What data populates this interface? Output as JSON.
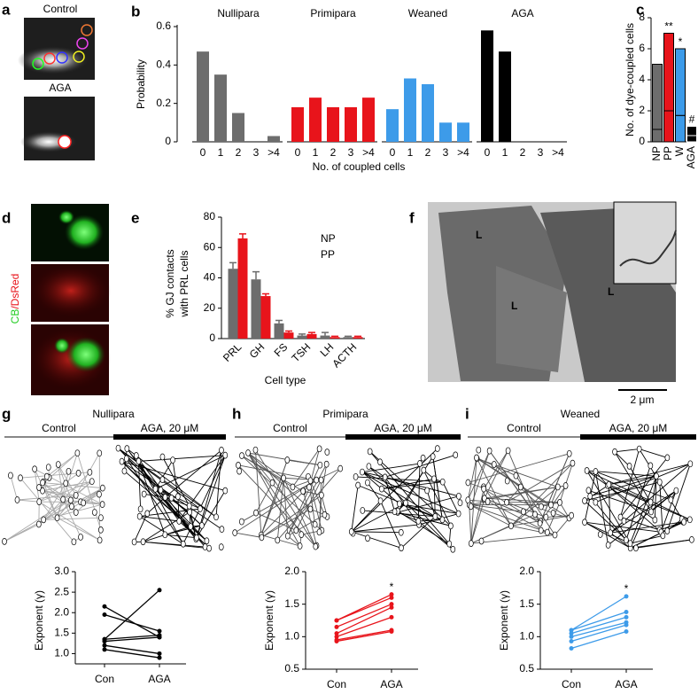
{
  "figure": {
    "a": {
      "panel": "a",
      "labels": [
        "Control",
        "AGA"
      ]
    },
    "d": {
      "panel": "d",
      "stain": [
        "CB",
        "/DsRed"
      ]
    },
    "f": {
      "panel": "f",
      "cells": [
        "L",
        "L",
        "L"
      ],
      "scale": "2 μm"
    },
    "g": {
      "panel": "g",
      "title": "Nullipara",
      "conditions": [
        "Control",
        "AGA, 20 μM"
      ]
    },
    "h": {
      "panel": "h",
      "title": "Primipara",
      "conditions": [
        "Control",
        "AGA, 20 μM"
      ]
    },
    "i": {
      "panel": "i",
      "title": "Weaned",
      "conditions": [
        "Control",
        "AGA, 20 μM"
      ]
    }
  },
  "chart_data": [
    {
      "type": "bar",
      "panel": "b",
      "ylabel": "Probability",
      "xlabel": "No. of coupled cells",
      "categories": [
        "0",
        "1",
        "2",
        "3",
        ">4"
      ],
      "ylim": [
        0,
        0.6
      ],
      "yticks": [
        0,
        0.2,
        0.4,
        0.6
      ],
      "series": [
        {
          "name": "Nullipara",
          "color": "#6d6d6d",
          "values": [
            0.47,
            0.35,
            0.15,
            0,
            0.03
          ]
        },
        {
          "name": "Primipara",
          "color": "#e8141b",
          "values": [
            0.18,
            0.23,
            0.18,
            0.18,
            0.23
          ]
        },
        {
          "name": "Weaned",
          "color": "#3d9be9",
          "values": [
            0.17,
            0.33,
            0.3,
            0.1,
            0.1
          ]
        },
        {
          "name": "AGA",
          "color": "#000000",
          "values": [
            0.58,
            0.47,
            0,
            0,
            0
          ]
        }
      ]
    },
    {
      "type": "stacked_bar",
      "panel": "c",
      "ylabel": "No. of dye-coupled cells",
      "categories": [
        "NP",
        "PP",
        "W",
        "AGA"
      ],
      "colors": [
        "#6d6d6d",
        "#e8141b",
        "#3d9be9",
        "#000000"
      ],
      "ylim": [
        0,
        8
      ],
      "yticks": [
        0,
        2,
        4,
        6,
        8
      ],
      "series": [
        {
          "values": [
            0.8,
            2,
            1.7,
            0.4
          ]
        },
        {
          "values": [
            4.2,
            5,
            4.3,
            0.6
          ]
        }
      ],
      "annotations": [
        {
          "text": "**",
          "category": "PP"
        },
        {
          "text": "*",
          "category": "W"
        },
        {
          "text": "#",
          "category": "AGA"
        }
      ]
    },
    {
      "type": "grouped_bar",
      "panel": "e",
      "ylabel": [
        "% GJ contacts",
        "with PRL cells"
      ],
      "xlabel": "Cell type",
      "categories": [
        "PRL",
        "GH",
        "FS",
        "TSH",
        "LH",
        "ACTH"
      ],
      "ylim": [
        0,
        80
      ],
      "yticks": [
        0,
        20,
        40,
        60,
        80
      ],
      "series": [
        {
          "name": "NP",
          "color": "#6d6d6d",
          "values": [
            46,
            39,
            10,
            2,
            2,
            1
          ],
          "errors": [
            4,
            5,
            2,
            1,
            2,
            0.5
          ]
        },
        {
          "name": "PP",
          "color": "#e8141b",
          "values": [
            66,
            28,
            4,
            3,
            1,
            1
          ],
          "errors": [
            3,
            1.5,
            1,
            1,
            0.5,
            0.5
          ]
        }
      ]
    },
    {
      "type": "paired_line",
      "ylabel": "Exponent (γ)",
      "categories": [
        "Con",
        "AGA"
      ],
      "color": "#000000",
      "ylim": [
        0.75,
        3.0
      ],
      "yticks": [
        {
          "value": 1.0,
          "label": "1.0"
        },
        {
          "value": 1.5,
          "label": "1.5"
        },
        {
          "value": 2.0,
          "label": "2.0"
        },
        {
          "value": 2.5,
          "label": "2.5"
        },
        {
          "value": 3.0,
          "label": "3.0"
        }
      ],
      "series": [
        {
          "values": [
            2.15,
            1.4
          ]
        },
        {
          "values": [
            1.95,
            1.55
          ]
        },
        {
          "values": [
            1.35,
            2.55
          ]
        },
        {
          "values": [
            1.35,
            1.45
          ]
        },
        {
          "values": [
            1.3,
            1.4
          ]
        },
        {
          "values": [
            1.2,
            1.0
          ]
        },
        {
          "values": [
            1.1,
            0.9
          ]
        }
      ]
    },
    {
      "type": "paired_line",
      "ylabel": "Exponent (γ)",
      "categories": [
        "Con",
        "AGA"
      ],
      "color": "#e8141b",
      "ylim": [
        0.5,
        2.0
      ],
      "yticks": [
        {
          "value": 0.5,
          "label": "0.5"
        },
        {
          "value": 1.0,
          "label": "1.0"
        },
        {
          "value": 1.5,
          "label": "1.5"
        },
        {
          "value": 2.0,
          "label": "2.0"
        }
      ],
      "series": [
        {
          "values": [
            1.25,
            1.65
          ]
        },
        {
          "values": [
            1.25,
            1.6
          ]
        },
        {
          "values": [
            1.15,
            1.5
          ]
        },
        {
          "values": [
            1.05,
            1.45
          ]
        },
        {
          "values": [
            1.0,
            1.3
          ]
        },
        {
          "values": [
            0.95,
            1.1
          ]
        },
        {
          "values": [
            0.93,
            1.08
          ]
        }
      ],
      "annotations": [
        {
          "text": "*",
          "category": "AGA"
        }
      ]
    },
    {
      "type": "paired_line",
      "ylabel": "Exponent (γ)",
      "categories": [
        "Con",
        "AGA"
      ],
      "color": "#3d9be9",
      "ylim": [
        0.5,
        2.0
      ],
      "yticks": [
        {
          "value": 0.5,
          "label": "0.5"
        },
        {
          "value": 1.0,
          "label": "1.0"
        },
        {
          "value": 1.5,
          "label": "1.5"
        },
        {
          "value": 2.0,
          "label": "2.0"
        }
      ],
      "series": [
        {
          "values": [
            1.1,
            1.62
          ]
        },
        {
          "values": [
            1.1,
            1.38
          ]
        },
        {
          "values": [
            1.05,
            1.3
          ]
        },
        {
          "values": [
            1.0,
            1.22
          ]
        },
        {
          "values": [
            0.93,
            1.18
          ]
        },
        {
          "values": [
            0.82,
            1.08
          ]
        }
      ],
      "annotations": [
        {
          "text": "*",
          "category": "AGA"
        }
      ]
    }
  ]
}
